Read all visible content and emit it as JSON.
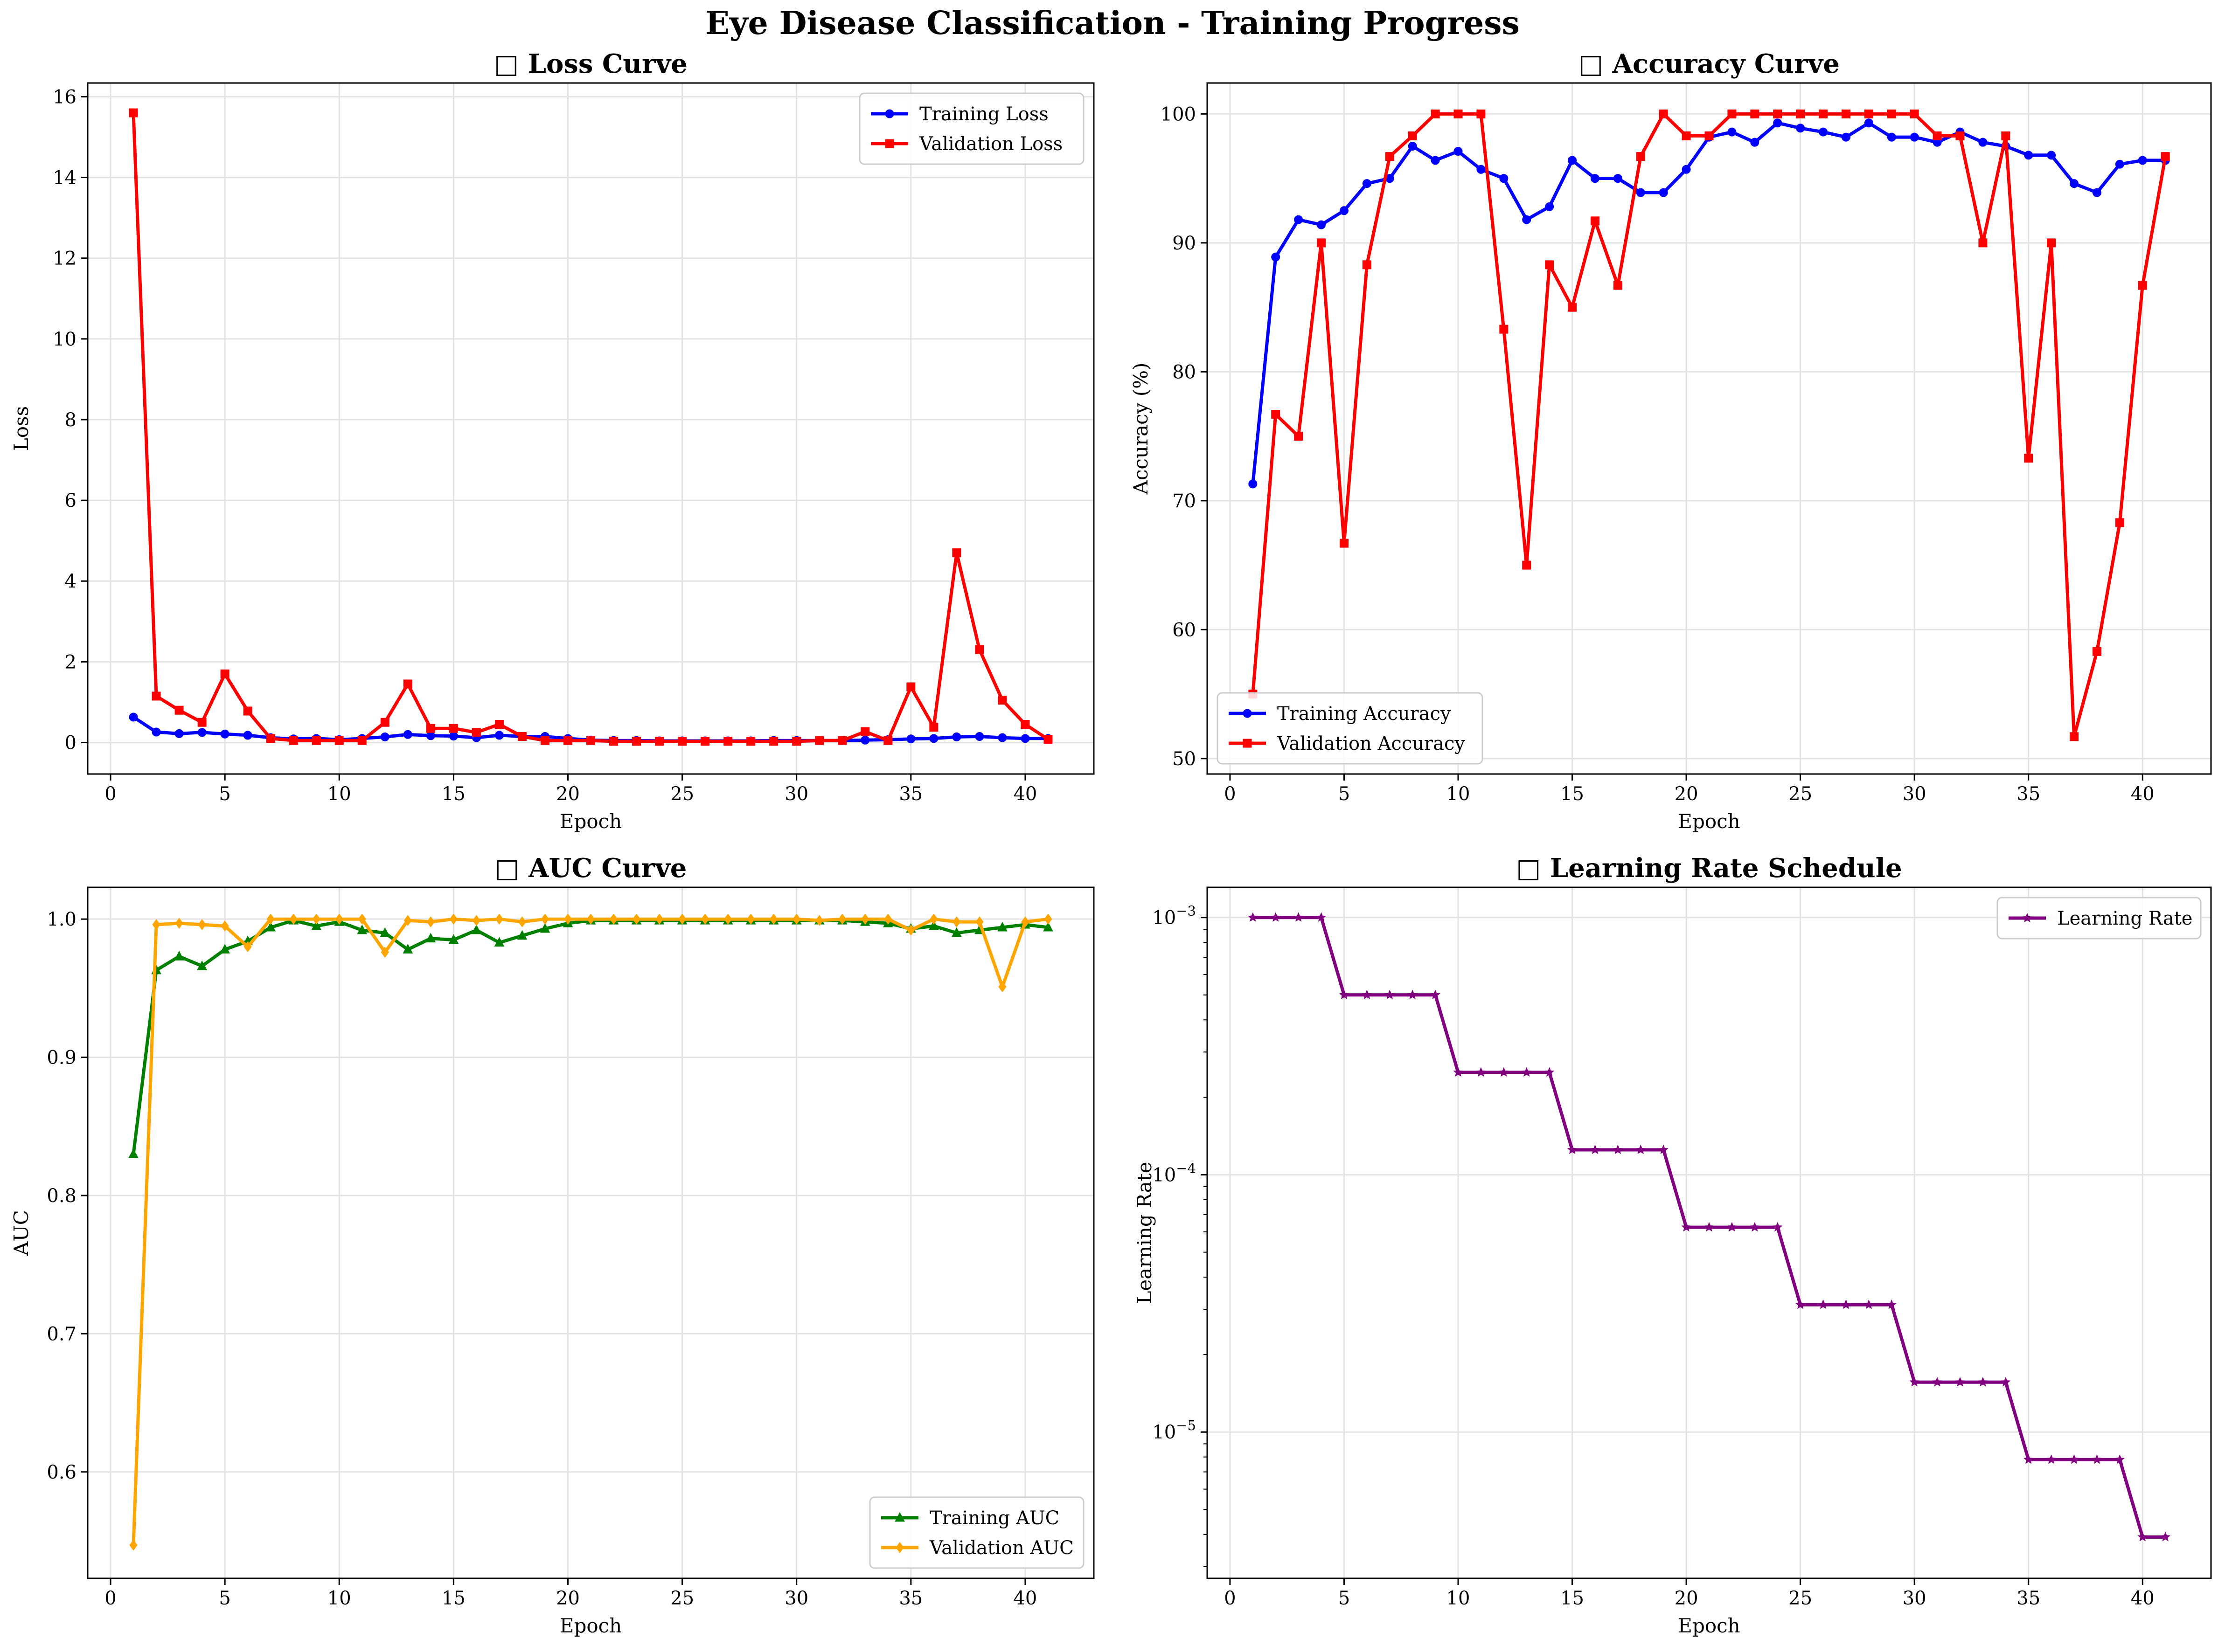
{
  "suptitle": "Eye Disease Classification - Training Progress",
  "chart_data": [
    {
      "type": "line",
      "title": "□ Loss Curve",
      "xlabel": "Epoch",
      "ylabel": "Loss",
      "xlim": [
        -1,
        43
      ],
      "ylim": [
        -0.78,
        16.34
      ],
      "xticks": [
        0,
        5,
        10,
        15,
        20,
        25,
        30,
        35,
        40
      ],
      "yticks": [
        0,
        2,
        4,
        6,
        8,
        10,
        12,
        14,
        16
      ],
      "grid": true,
      "legend": "top-right",
      "x": [
        1,
        2,
        3,
        4,
        5,
        6,
        7,
        8,
        9,
        10,
        11,
        12,
        13,
        14,
        15,
        16,
        17,
        18,
        19,
        20,
        21,
        22,
        23,
        24,
        25,
        26,
        27,
        28,
        29,
        30,
        31,
        32,
        33,
        34,
        35,
        36,
        37,
        38,
        39,
        40,
        41
      ],
      "series": [
        {
          "name": "Training Loss",
          "color": "#0000ff",
          "marker": "circle",
          "values": [
            0.63,
            0.26,
            0.22,
            0.25,
            0.21,
            0.18,
            0.12,
            0.09,
            0.1,
            0.07,
            0.1,
            0.14,
            0.2,
            0.17,
            0.16,
            0.12,
            0.18,
            0.15,
            0.15,
            0.1,
            0.06,
            0.05,
            0.05,
            0.04,
            0.04,
            0.04,
            0.04,
            0.04,
            0.05,
            0.05,
            0.05,
            0.05,
            0.06,
            0.07,
            0.09,
            0.1,
            0.14,
            0.15,
            0.12,
            0.1,
            0.1
          ]
        },
        {
          "name": "Validation Loss",
          "color": "#ff0000",
          "marker": "square",
          "values": [
            15.6,
            1.15,
            0.8,
            0.5,
            1.7,
            0.78,
            0.1,
            0.05,
            0.05,
            0.05,
            0.05,
            0.5,
            1.45,
            0.35,
            0.35,
            0.25,
            0.45,
            0.15,
            0.05,
            0.05,
            0.05,
            0.03,
            0.03,
            0.03,
            0.03,
            0.03,
            0.03,
            0.03,
            0.03,
            0.03,
            0.05,
            0.05,
            0.27,
            0.05,
            1.38,
            0.38,
            4.7,
            2.3,
            1.05,
            0.45,
            0.08
          ]
        }
      ]
    },
    {
      "type": "line",
      "title": "□ Accuracy Curve",
      "xlabel": "Epoch",
      "ylabel": "Accuracy (%)",
      "xlim": [
        -1,
        43
      ],
      "ylim": [
        48.8,
        102.4
      ],
      "xticks": [
        0,
        5,
        10,
        15,
        20,
        25,
        30,
        35,
        40
      ],
      "yticks": [
        50,
        60,
        70,
        80,
        90,
        100
      ],
      "grid": true,
      "legend": "bottom-left",
      "x": [
        1,
        2,
        3,
        4,
        5,
        6,
        7,
        8,
        9,
        10,
        11,
        12,
        13,
        14,
        15,
        16,
        17,
        18,
        19,
        20,
        21,
        22,
        23,
        24,
        25,
        26,
        27,
        28,
        29,
        30,
        31,
        32,
        33,
        34,
        35,
        36,
        37,
        38,
        39,
        40,
        41
      ],
      "series": [
        {
          "name": "Training Accuracy",
          "color": "#0000ff",
          "marker": "circle",
          "values": [
            71.3,
            88.9,
            91.8,
            91.4,
            92.5,
            94.6,
            95.0,
            97.5,
            96.4,
            97.1,
            95.7,
            95.0,
            91.8,
            92.8,
            96.4,
            95.0,
            95.0,
            93.9,
            93.9,
            95.7,
            98.2,
            98.6,
            97.8,
            99.3,
            98.9,
            98.6,
            98.2,
            99.3,
            98.2,
            98.2,
            97.8,
            98.6,
            97.8,
            97.5,
            96.8,
            96.8,
            94.6,
            93.9,
            96.1,
            96.4,
            96.4
          ]
        },
        {
          "name": "Validation Accuracy",
          "color": "#ff0000",
          "marker": "square",
          "values": [
            55.0,
            76.7,
            75.0,
            90.0,
            66.7,
            88.3,
            96.7,
            98.3,
            100,
            100,
            100,
            83.3,
            65.0,
            88.3,
            85.0,
            91.7,
            86.7,
            96.7,
            100,
            98.3,
            98.3,
            100,
            100,
            100,
            100,
            100,
            100,
            100,
            100,
            100,
            98.3,
            98.3,
            90.0,
            98.3,
            73.3,
            90.0,
            51.7,
            58.3,
            68.3,
            86.7,
            96.7
          ]
        }
      ]
    },
    {
      "type": "line",
      "title": "□ AUC Curve",
      "xlabel": "Epoch",
      "ylabel": "AUC",
      "xlim": [
        -1,
        43
      ],
      "ylim": [
        0.523,
        1.023
      ],
      "xticks": [
        0,
        5,
        10,
        15,
        20,
        25,
        30,
        35,
        40
      ],
      "yticks": [
        0.6,
        0.7,
        0.8,
        0.9,
        1.0
      ],
      "grid": true,
      "legend": "bottom-right",
      "x": [
        1,
        2,
        3,
        4,
        5,
        6,
        7,
        8,
        9,
        10,
        11,
        12,
        13,
        14,
        15,
        16,
        17,
        18,
        19,
        20,
        21,
        22,
        23,
        24,
        25,
        26,
        27,
        28,
        29,
        30,
        31,
        32,
        33,
        34,
        35,
        36,
        37,
        38,
        39,
        40,
        41
      ],
      "series": [
        {
          "name": "Training AUC",
          "color": "#008000",
          "marker": "triangle",
          "values": [
            0.83,
            0.963,
            0.973,
            0.966,
            0.978,
            0.984,
            0.994,
            0.999,
            0.995,
            0.998,
            0.992,
            0.99,
            0.978,
            0.986,
            0.985,
            0.992,
            0.983,
            0.988,
            0.993,
            0.997,
            0.999,
            0.999,
            0.999,
            0.999,
            0.999,
            0.999,
            0.999,
            0.999,
            0.999,
            0.999,
            0.999,
            0.999,
            0.998,
            0.997,
            0.993,
            0.995,
            0.99,
            0.992,
            0.994,
            0.996,
            0.994
          ]
        },
        {
          "name": "Validation AUC",
          "color": "#ffa500",
          "marker": "diamond",
          "values": [
            0.547,
            0.996,
            0.997,
            0.996,
            0.995,
            0.98,
            1.0,
            1.0,
            1.0,
            1.0,
            1.0,
            0.976,
            0.999,
            0.998,
            1.0,
            0.999,
            1.0,
            0.998,
            1.0,
            1.0,
            1.0,
            1.0,
            1.0,
            1.0,
            1.0,
            1.0,
            1.0,
            1.0,
            1.0,
            1.0,
            0.999,
            1.0,
            1.0,
            1.0,
            0.992,
            1.0,
            0.998,
            0.998,
            0.951,
            0.998,
            1.0
          ]
        }
      ]
    },
    {
      "type": "line",
      "title": "□ Learning Rate Schedule",
      "xlabel": "Epoch",
      "ylabel": "Learning Rate",
      "xlim": [
        -1,
        43
      ],
      "ylim": [
        2.7e-06,
        0.00131
      ],
      "yscale": "log",
      "xticks": [
        0,
        5,
        10,
        15,
        20,
        25,
        30,
        35,
        40
      ],
      "ytick_labels": [
        {
          "value": 0.001,
          "base": "10",
          "exp": "−3"
        },
        {
          "value": 0.0001,
          "base": "10",
          "exp": "−4"
        },
        {
          "value": 1e-05,
          "base": "10",
          "exp": "−5"
        }
      ],
      "grid": true,
      "legend": "top-right",
      "x": [
        1,
        2,
        3,
        4,
        5,
        6,
        7,
        8,
        9,
        10,
        11,
        12,
        13,
        14,
        15,
        16,
        17,
        18,
        19,
        20,
        21,
        22,
        23,
        24,
        25,
        26,
        27,
        28,
        29,
        30,
        31,
        32,
        33,
        34,
        35,
        36,
        37,
        38,
        39,
        40,
        41
      ],
      "series": [
        {
          "name": "Learning Rate",
          "color": "#800080",
          "marker": "star",
          "values": [
            0.001,
            0.001,
            0.001,
            0.001,
            0.0005,
            0.0005,
            0.0005,
            0.0005,
            0.0005,
            0.00025,
            0.00025,
            0.00025,
            0.00025,
            0.00025,
            0.000125,
            0.000125,
            0.000125,
            0.000125,
            0.000125,
            6.25e-05,
            6.25e-05,
            6.25e-05,
            6.25e-05,
            6.25e-05,
            3.125e-05,
            3.125e-05,
            3.125e-05,
            3.125e-05,
            3.125e-05,
            1.5625e-05,
            1.5625e-05,
            1.5625e-05,
            1.5625e-05,
            1.5625e-05,
            7.8125e-06,
            7.8125e-06,
            7.8125e-06,
            7.8125e-06,
            7.8125e-06,
            3.90625e-06,
            3.90625e-06
          ]
        }
      ]
    }
  ]
}
